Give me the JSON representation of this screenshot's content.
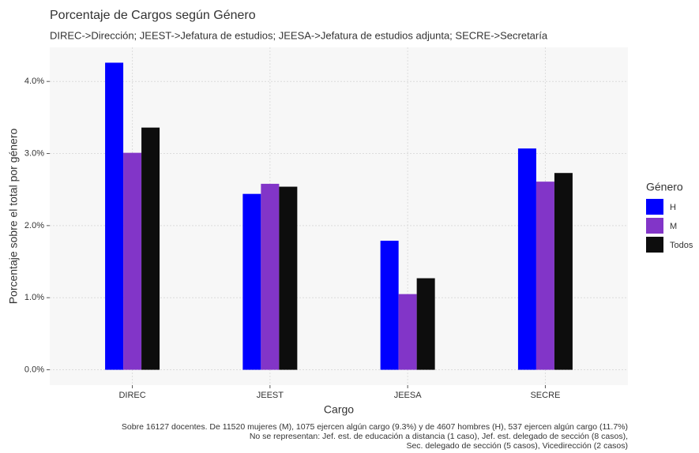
{
  "chart_data": {
    "type": "bar",
    "title": "Porcentaje de Cargos según Género",
    "subtitle": "DIREC->Dirección; JEEST->Jefatura de estudios; JEESA->Jefatura de estudios adjunta; SECRE->Secretaría",
    "x_label": "Cargo",
    "y_label": "Porcentaje sobre el total por género",
    "legend_title": "Género",
    "legend_position": "right",
    "grid": true,
    "categories": [
      "DIREC",
      "JEEST",
      "JEESA",
      "SECRE"
    ],
    "series": [
      {
        "name": "H",
        "color": "#0000ff",
        "values": [
          4.26,
          2.44,
          1.79,
          3.07
        ]
      },
      {
        "name": "M",
        "color": "#8235c8",
        "values": [
          3.01,
          2.58,
          1.05,
          2.61
        ]
      },
      {
        "name": "Todos",
        "color": "#0d0d0d",
        "values": [
          3.36,
          2.54,
          1.27,
          2.73
        ]
      }
    ],
    "ylim": [
      -0.213,
      4.473
    ],
    "yticks": [
      {
        "value": 0,
        "label": "0.0%"
      },
      {
        "value": 1,
        "label": "1.0%"
      },
      {
        "value": 2,
        "label": "2.0%"
      },
      {
        "value": 3,
        "label": "3.0%"
      },
      {
        "value": 4,
        "label": "4.0%"
      }
    ],
    "caption": [
      "Sobre 16127 docentes. De 11520 mujeres (M), 1075 ejercen algún cargo (9.3%) y de 4607 hombres (H), 537 ejercen algún cargo (11.7%)",
      "No se representan: Jef. est. de educación a distancia (1 caso), Jef. est. delegado de sección (8 casos),",
      "Sec. delegado de sección (5 casos), Vicedirección (2 casos)"
    ]
  }
}
